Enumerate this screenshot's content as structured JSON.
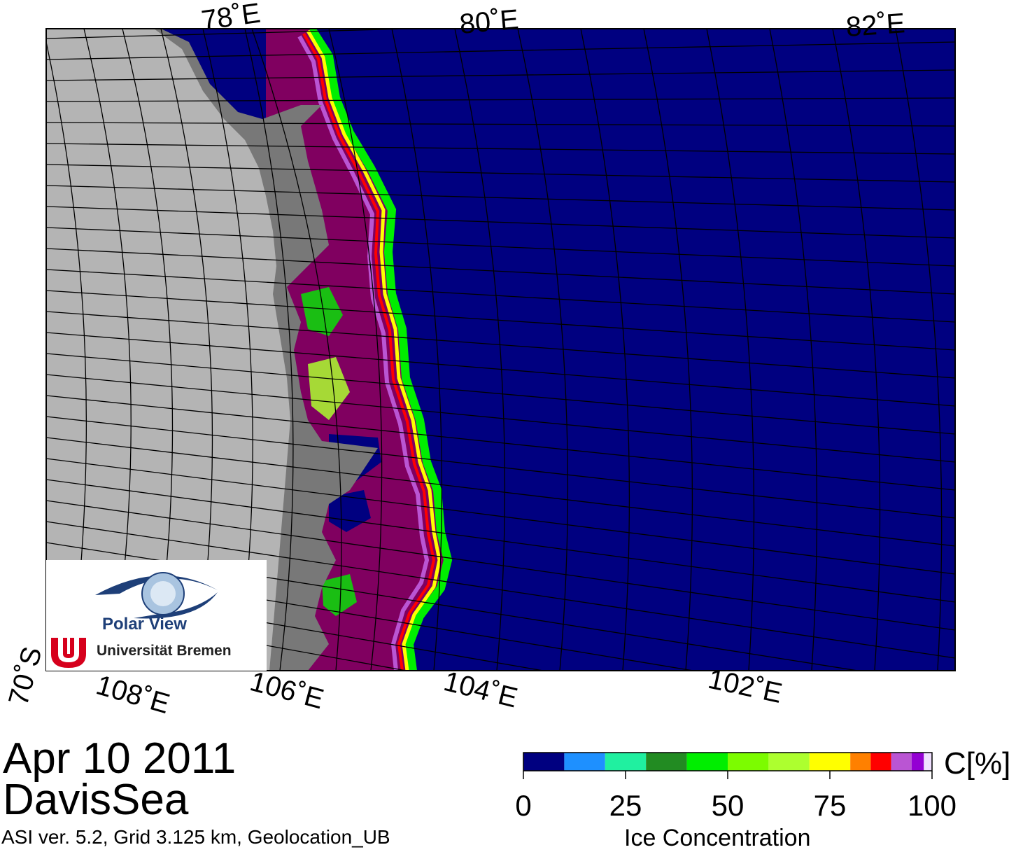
{
  "map": {
    "longitude_labels_top": [
      "78˚E",
      "80˚E",
      "82˚E"
    ],
    "longitude_labels_bottom": [
      "108˚E",
      "106˚E",
      "104˚E",
      "102˚E"
    ],
    "latitude_label": "70˚S",
    "colors": {
      "ocean_open": "#000080",
      "land": "#b4b4b4",
      "ice_shelf": "#787878",
      "high_ice": "#800060"
    }
  },
  "title": {
    "date": "Apr 10 2011",
    "region": "DavisSea",
    "product": "ASI ver. 5.2,  Grid 3.125 km, Geolocation_UB"
  },
  "logo": {
    "line1": "Polar View",
    "line2": "Universität Bremen"
  },
  "colorbar": {
    "unit": "C[%]",
    "title": "Ice Concentration",
    "ticks": [
      "0",
      "25",
      "50",
      "75",
      "100"
    ],
    "colors": [
      "#000080",
      "#1e90ff",
      "#20f0a0",
      "#228b22",
      "#00ee00",
      "#7cfc00",
      "#adff2f",
      "#ffff00",
      "#ff8000",
      "#ff0000",
      "#ba55d3",
      "#9400d3",
      "#f0e0ff"
    ]
  }
}
